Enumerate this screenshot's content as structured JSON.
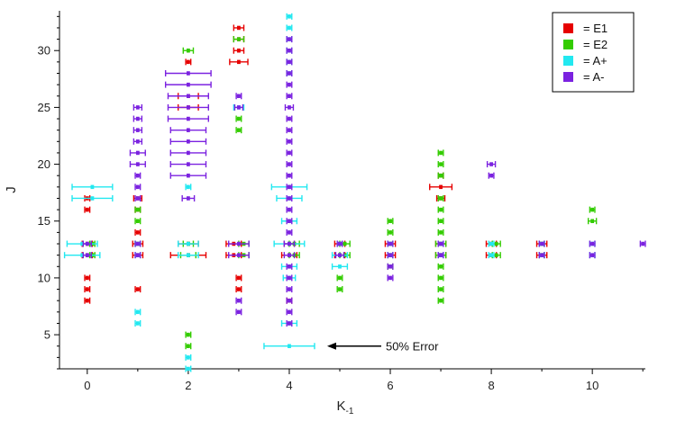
{
  "chart_data": {
    "type": "scatter",
    "xlabel": "K",
    "xlabel_sub": "-1",
    "ylabel": "J",
    "xlim": [
      -0.55,
      11.05
    ],
    "ylim": [
      2.0,
      33.5
    ],
    "x_ticks": [
      0,
      2,
      4,
      6,
      8,
      10
    ],
    "x_ticks_minor": [
      1,
      3,
      5,
      7,
      9,
      11
    ],
    "y_ticks": [
      5,
      10,
      15,
      20,
      25,
      30
    ],
    "legend_position": "top-right",
    "colors": {
      "E1": "#e60000",
      "E2": "#33cc00",
      "A+": "#22e8f0",
      "A-": "#7b22e0"
    },
    "series": [
      {
        "name": "E1",
        "legend_label": "= E1",
        "points": [
          [
            0,
            8,
            0.05
          ],
          [
            0,
            9,
            0.05
          ],
          [
            0,
            10,
            0.05
          ],
          [
            0,
            12,
            0.1
          ],
          [
            0,
            13,
            0.1
          ],
          [
            0,
            16,
            0.05
          ],
          [
            0,
            17,
            0.05
          ],
          [
            1,
            9,
            0.05
          ],
          [
            1,
            12,
            0.1
          ],
          [
            1,
            13,
            0.1
          ],
          [
            1,
            14,
            0.05
          ],
          [
            1,
            16,
            0.05
          ],
          [
            1,
            17,
            0.08
          ],
          [
            2,
            12,
            0.35
          ],
          [
            2,
            13,
            0.2
          ],
          [
            2,
            25,
            0.2
          ],
          [
            2,
            26,
            0.2
          ],
          [
            2,
            29,
            0.05
          ],
          [
            2.9,
            12,
            0.15
          ],
          [
            2.9,
            13,
            0.15
          ],
          [
            3,
            9,
            0.05
          ],
          [
            3,
            10,
            0.05
          ],
          [
            3,
            29,
            0.18
          ],
          [
            3,
            30,
            0.1
          ],
          [
            3,
            31,
            0.1
          ],
          [
            3,
            32,
            0.1
          ],
          [
            4,
            8,
            0.05
          ],
          [
            4,
            12,
            0.15
          ],
          [
            4,
            13,
            0.1
          ],
          [
            5,
            12,
            0.1
          ],
          [
            5,
            13,
            0.1
          ],
          [
            6,
            12,
            0.1
          ],
          [
            6,
            13,
            0.1
          ],
          [
            7,
            12,
            0.1
          ],
          [
            7,
            13,
            0.1
          ],
          [
            7,
            17,
            0.08
          ],
          [
            7,
            18,
            0.22
          ],
          [
            7,
            19,
            0.05
          ],
          [
            8,
            12,
            0.1
          ],
          [
            8,
            13,
            0.1
          ],
          [
            9,
            12,
            0.1
          ],
          [
            9,
            13,
            0.1
          ]
        ]
      },
      {
        "name": "E2",
        "legend_label": "= E2",
        "points": [
          [
            0.1,
            12,
            0.05
          ],
          [
            0.1,
            13,
            0.05
          ],
          [
            1,
            13,
            0.05
          ],
          [
            1,
            15,
            0.05
          ],
          [
            1,
            16,
            0.05
          ],
          [
            2,
            4,
            0.05
          ],
          [
            2,
            5,
            0.05
          ],
          [
            2,
            12,
            0.15
          ],
          [
            2,
            13,
            0.1
          ],
          [
            2,
            30,
            0.1
          ],
          [
            3,
            23,
            0.05
          ],
          [
            3,
            24,
            0.05
          ],
          [
            3,
            31,
            0.1
          ],
          [
            3.1,
            12,
            0.1
          ],
          [
            3.1,
            13,
            0.1
          ],
          [
            4.1,
            12,
            0.1
          ],
          [
            4.1,
            13,
            0.1
          ],
          [
            5,
            9,
            0.05
          ],
          [
            5,
            10,
            0.05
          ],
          [
            5.1,
            12,
            0.1
          ],
          [
            5.1,
            13,
            0.1
          ],
          [
            6,
            11,
            0.05
          ],
          [
            6,
            12,
            0.05
          ],
          [
            6,
            13,
            0.05
          ],
          [
            6,
            14,
            0.05
          ],
          [
            6,
            15,
            0.05
          ],
          [
            7,
            8,
            0.05
          ],
          [
            7,
            9,
            0.05
          ],
          [
            7,
            10,
            0.05
          ],
          [
            7,
            11,
            0.05
          ],
          [
            7,
            12,
            0.1
          ],
          [
            7,
            13,
            0.1
          ],
          [
            7,
            14,
            0.05
          ],
          [
            7,
            15,
            0.05
          ],
          [
            7,
            16,
            0.05
          ],
          [
            7,
            17,
            0.05
          ],
          [
            7,
            19,
            0.05
          ],
          [
            7,
            20,
            0.05
          ],
          [
            7,
            21,
            0.05
          ],
          [
            8.1,
            12,
            0.08
          ],
          [
            8.1,
            13,
            0.08
          ],
          [
            9,
            12,
            0.05
          ],
          [
            9,
            13,
            0.05
          ],
          [
            10,
            15,
            0.08
          ],
          [
            10,
            16,
            0.05
          ]
        ]
      },
      {
        "name": "A+",
        "legend_label": "= A+",
        "points": [
          [
            2,
            2,
            0.05
          ],
          [
            2,
            3,
            0.05
          ],
          [
            1,
            6,
            0.05
          ],
          [
            1,
            7,
            0.05
          ],
          [
            1,
            12,
            0.05
          ],
          [
            1,
            13,
            0.05
          ],
          [
            -0.1,
            12,
            0.35
          ],
          [
            -0.1,
            13,
            0.3
          ],
          [
            0.1,
            17,
            0.4
          ],
          [
            0.1,
            18,
            0.4
          ],
          [
            2,
            12,
            0.2
          ],
          [
            2,
            13,
            0.2
          ],
          [
            2,
            18,
            0.05
          ],
          [
            3,
            25,
            0.1
          ],
          [
            4,
            4,
            0.5
          ],
          [
            4,
            6,
            0.15
          ],
          [
            4,
            10,
            0.12
          ],
          [
            4,
            11,
            0.15
          ],
          [
            4,
            13,
            0.3
          ],
          [
            4,
            15,
            0.15
          ],
          [
            4,
            17,
            0.25
          ],
          [
            4,
            18,
            0.35
          ],
          [
            4,
            28,
            0.05
          ],
          [
            4,
            29,
            0.05
          ],
          [
            4,
            30,
            0.05
          ],
          [
            4,
            31,
            0.05
          ],
          [
            4,
            32,
            0.05
          ],
          [
            4,
            33,
            0.05
          ],
          [
            5,
            11,
            0.15
          ],
          [
            5,
            12,
            0.15
          ],
          [
            5,
            13,
            0.05
          ],
          [
            6,
            12,
            0.05
          ],
          [
            6,
            13,
            0.05
          ],
          [
            7,
            12,
            0.05
          ],
          [
            7,
            13,
            0.05
          ],
          [
            8,
            12,
            0.05
          ],
          [
            8,
            13,
            0.05
          ],
          [
            9,
            12,
            0.05
          ],
          [
            9,
            13,
            0.05
          ],
          [
            10,
            12,
            0.05
          ],
          [
            10,
            13,
            0.05
          ]
        ]
      },
      {
        "name": "A-",
        "legend_label": "= A-",
        "points": [
          [
            0,
            12,
            0.08
          ],
          [
            0,
            13,
            0.08
          ],
          [
            1,
            12,
            0.05
          ],
          [
            1,
            13,
            0.05
          ],
          [
            1,
            17,
            0.05
          ],
          [
            1,
            18,
            0.05
          ],
          [
            1,
            19,
            0.05
          ],
          [
            1,
            20,
            0.15
          ],
          [
            1,
            21,
            0.15
          ],
          [
            1,
            22,
            0.08
          ],
          [
            1,
            23,
            0.08
          ],
          [
            1,
            24,
            0.08
          ],
          [
            1,
            25,
            0.08
          ],
          [
            2,
            17,
            0.12
          ],
          [
            2,
            19,
            0.35
          ],
          [
            2,
            20,
            0.35
          ],
          [
            2,
            21,
            0.35
          ],
          [
            2,
            22,
            0.35
          ],
          [
            2,
            23,
            0.35
          ],
          [
            2,
            24,
            0.4
          ],
          [
            2,
            25,
            0.4
          ],
          [
            2,
            26,
            0.4
          ],
          [
            2,
            27,
            0.45
          ],
          [
            2,
            28,
            0.45
          ],
          [
            3,
            7,
            0.05
          ],
          [
            3,
            8,
            0.05
          ],
          [
            3,
            12,
            0.2
          ],
          [
            3,
            13,
            0.2
          ],
          [
            3,
            25,
            0.08
          ],
          [
            3,
            26,
            0.05
          ],
          [
            4,
            6,
            0.05
          ],
          [
            4,
            7,
            0.05
          ],
          [
            4,
            8,
            0.05
          ],
          [
            4,
            9,
            0.05
          ],
          [
            4,
            10,
            0.05
          ],
          [
            4,
            11,
            0.05
          ],
          [
            4,
            12,
            0.1
          ],
          [
            4,
            13,
            0.1
          ],
          [
            4,
            14,
            0.05
          ],
          [
            4,
            15,
            0.05
          ],
          [
            4,
            16,
            0.05
          ],
          [
            4,
            17,
            0.05
          ],
          [
            4,
            18,
            0.05
          ],
          [
            4,
            19,
            0.05
          ],
          [
            4,
            20,
            0.05
          ],
          [
            4,
            21,
            0.05
          ],
          [
            4,
            22,
            0.05
          ],
          [
            4,
            23,
            0.05
          ],
          [
            4,
            24,
            0.05
          ],
          [
            4,
            25,
            0.08
          ],
          [
            4,
            26,
            0.05
          ],
          [
            4,
            27,
            0.05
          ],
          [
            4,
            28,
            0.05
          ],
          [
            4,
            29,
            0.05
          ],
          [
            4,
            30,
            0.05
          ],
          [
            4,
            31,
            0.05
          ],
          [
            5,
            12,
            0.08
          ],
          [
            5,
            13,
            0.05
          ],
          [
            6,
            10,
            0.05
          ],
          [
            6,
            11,
            0.05
          ],
          [
            6,
            12,
            0.05
          ],
          [
            6,
            13,
            0.05
          ],
          [
            7,
            12,
            0.05
          ],
          [
            7,
            13,
            0.05
          ],
          [
            8,
            19,
            0.05
          ],
          [
            8,
            20,
            0.08
          ],
          [
            9,
            12,
            0.05
          ],
          [
            9,
            13,
            0.05
          ],
          [
            10,
            12,
            0.05
          ],
          [
            10,
            13,
            0.05
          ],
          [
            11,
            13,
            0.05
          ]
        ]
      }
    ],
    "annotation": {
      "text": "50% Error",
      "x": 4.75,
      "y": 4
    }
  }
}
